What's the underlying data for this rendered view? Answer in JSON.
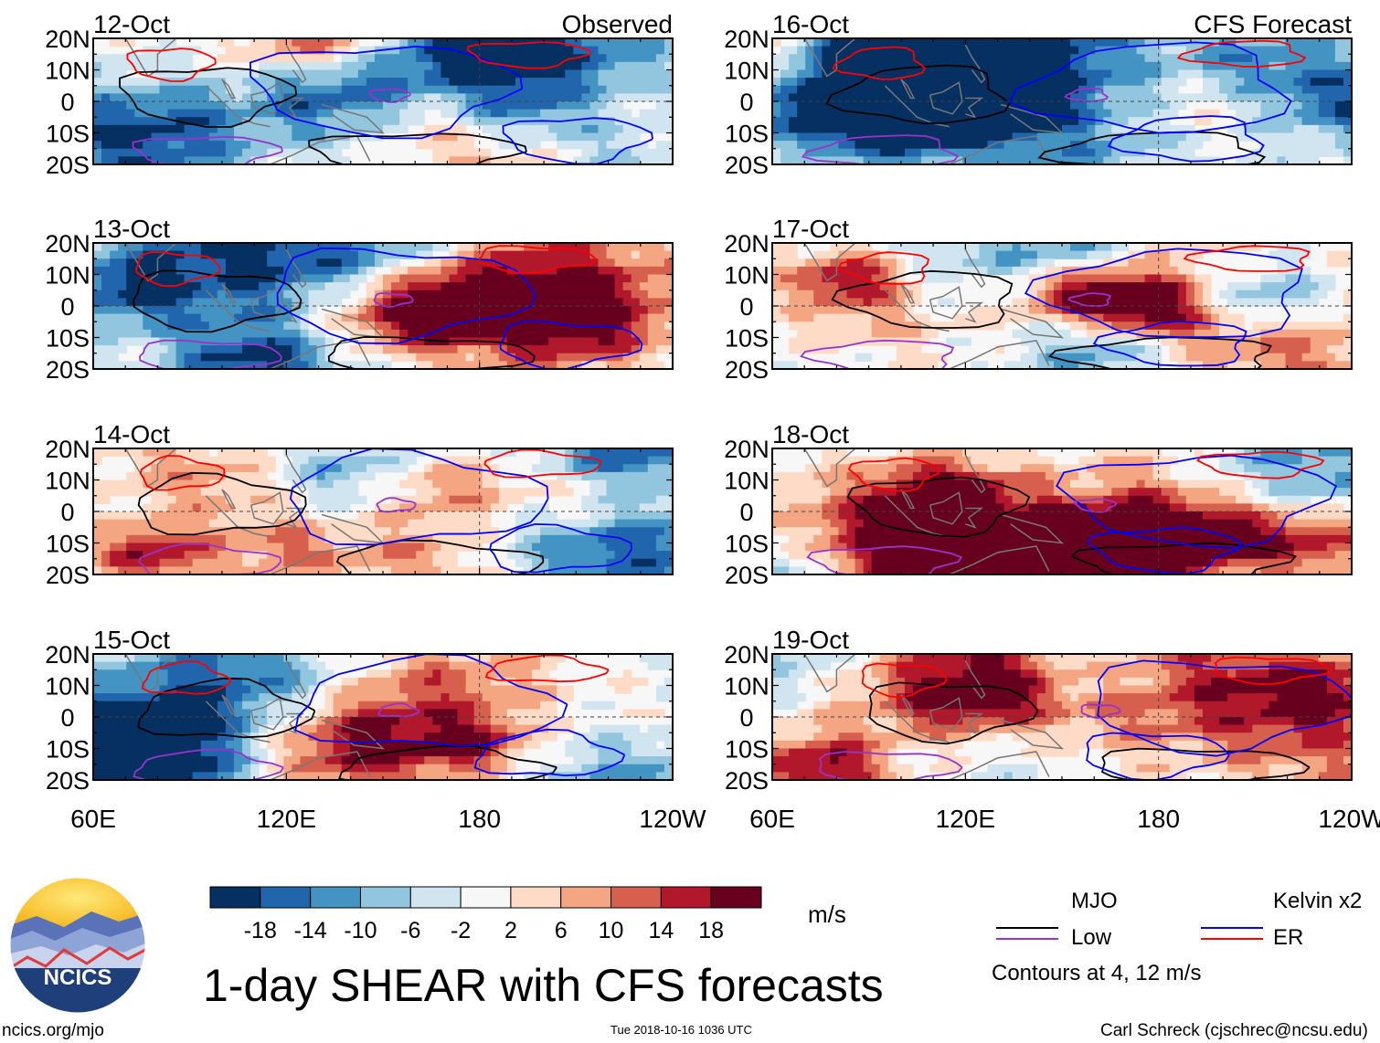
{
  "chart_data": {
    "type": "heatmap",
    "title": "1-day SHEAR with CFS forecasts",
    "units": "m/s",
    "x_ticks": [
      "60E",
      "120E",
      "180",
      "120W"
    ],
    "y_ticks": [
      "20N",
      "10N",
      "0",
      "10S",
      "20S"
    ],
    "xlim_deg_east": [
      60,
      240
    ],
    "ylim_deg": [
      -20,
      20
    ],
    "panels": [
      {
        "date": "12-Oct",
        "label": "Observed",
        "column": "observed"
      },
      {
        "date": "13-Oct",
        "label": "",
        "column": "observed"
      },
      {
        "date": "14-Oct",
        "label": "",
        "column": "observed"
      },
      {
        "date": "15-Oct",
        "label": "",
        "column": "observed"
      },
      {
        "date": "16-Oct",
        "label": "CFS Forecast",
        "column": "forecast"
      },
      {
        "date": "17-Oct",
        "label": "",
        "column": "forecast"
      },
      {
        "date": "18-Oct",
        "label": "",
        "column": "forecast"
      },
      {
        "date": "19-Oct",
        "label": "",
        "column": "forecast"
      }
    ],
    "colorbar": {
      "labels": [
        "-18",
        "-14",
        "-10",
        "-6",
        "-2",
        "2",
        "6",
        "10",
        "14",
        "18"
      ],
      "colors": [
        "#053061",
        "#2166ac",
        "#4393c3",
        "#92c5de",
        "#d1e5f0",
        "#f7f7f7",
        "#fddbc7",
        "#f4a582",
        "#d6604d",
        "#b2182b",
        "#67001f"
      ]
    },
    "legend": [
      {
        "name": "MJO",
        "color": "#000000"
      },
      {
        "name": "Kelvin x2",
        "color": "#0000ff"
      },
      {
        "name": "Low",
        "color": "#9a32cd"
      },
      {
        "name": "ER",
        "color": "#ff0000"
      }
    ],
    "contour_note": "Contours at 4, 12 m/s"
  },
  "logo": {
    "text": "NCICS"
  },
  "footer": {
    "website": "ncics.org/mjo",
    "timestamp": "Tue 2018-10-16 1036 UTC",
    "credit": "Carl Schreck (cjschrec@ncsu.edu)"
  }
}
